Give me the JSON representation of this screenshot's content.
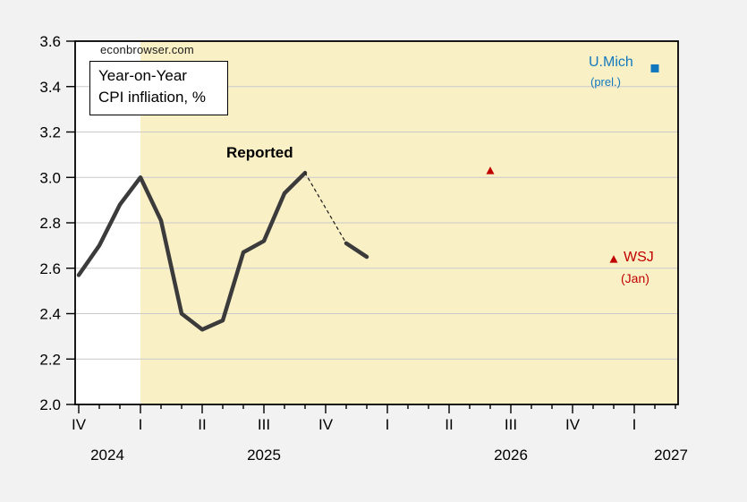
{
  "source": "econbrowser.com",
  "legend": {
    "line1": "Year-on-Year",
    "line2": "CPI infliation, %"
  },
  "annotations": {
    "reported": "Reported",
    "umich_label": "U.Mich",
    "umich_sub": "(prel.)",
    "wsj_label": "WSJ",
    "wsj_sub": "(Jan)"
  },
  "colors": {
    "figure_background": "#f2f2f2",
    "plot_background": "#ffffff",
    "shaded_region": "#faf0c6",
    "gridline": "#c9c9cc",
    "frame": "#000000",
    "reported_line": "#3b3b3b",
    "dashed_connector": "#1a1a1a",
    "wsj_red": "#c00000",
    "umich_blue": "#1178be",
    "axis_text": "#000000"
  },
  "chart_data": {
    "type": "line",
    "title": "Year-on-Year CPI infliation, %",
    "source": "econbrowser.com",
    "x_axis": {
      "start_month": "2024-10",
      "end_month": "2027-03",
      "minor_ticks": "monthly",
      "major_tick_every_months": 3,
      "quarter_labels": [
        "IV",
        "I",
        "II",
        "III",
        "IV",
        "I",
        "II",
        "III",
        "IV",
        "I"
      ],
      "year_labels": [
        "2024",
        "2025",
        "2026",
        "2027"
      ]
    },
    "y_axis": {
      "min": 2.0,
      "max": 3.6,
      "tick_step": 0.2,
      "tick_labels": [
        "3.6",
        "3.4",
        "3.2",
        "3.0",
        "2.8",
        "2.6",
        "2.4",
        "2.2",
        "2.0"
      ],
      "grid": "horizontal-only"
    },
    "shaded_region": {
      "from_month": "2025-01",
      "to_month": "2027-03",
      "color": "#faf0c6"
    },
    "series": [
      {
        "name": "Reported",
        "line_style": "solid",
        "color": "#3b3b3b",
        "width": 4.5,
        "months": [
          "2024-10",
          "2024-11",
          "2024-12",
          "2025-01",
          "2025-02",
          "2025-03",
          "2025-04",
          "2025-05",
          "2025-06",
          "2025-07",
          "2025-08",
          "2025-09"
        ],
        "values": [
          2.57,
          2.7,
          2.88,
          3.0,
          2.81,
          2.4,
          2.33,
          2.37,
          2.67,
          2.72,
          2.93,
          3.02
        ]
      },
      {
        "name": "dashed connector (October 2025 not reported)",
        "line_style": "dashed",
        "color": "#1a1a1a",
        "width": 1.2,
        "months": [
          "2025-09",
          "2025-11"
        ],
        "values": [
          3.02,
          2.71
        ]
      },
      {
        "name": "Reported (resumed)",
        "line_style": "solid",
        "color": "#3b3b3b",
        "width": 4.5,
        "months": [
          "2025-11",
          "2025-12"
        ],
        "values": [
          2.71,
          2.65
        ]
      }
    ],
    "points": [
      {
        "name": "WSJ (Jan) forecast mid-2026",
        "month": "2026-06",
        "value": 3.03,
        "marker": "triangle-up",
        "color": "#c00000"
      },
      {
        "name": "WSJ (Jan) forecast Dec-2026",
        "month": "2026-12",
        "value": 2.64,
        "marker": "triangle-up",
        "color": "#c00000"
      },
      {
        "name": "U.Mich (prel.) expectation",
        "month": "2027-02",
        "value": 3.48,
        "marker": "square",
        "color": "#1178be"
      }
    ]
  }
}
